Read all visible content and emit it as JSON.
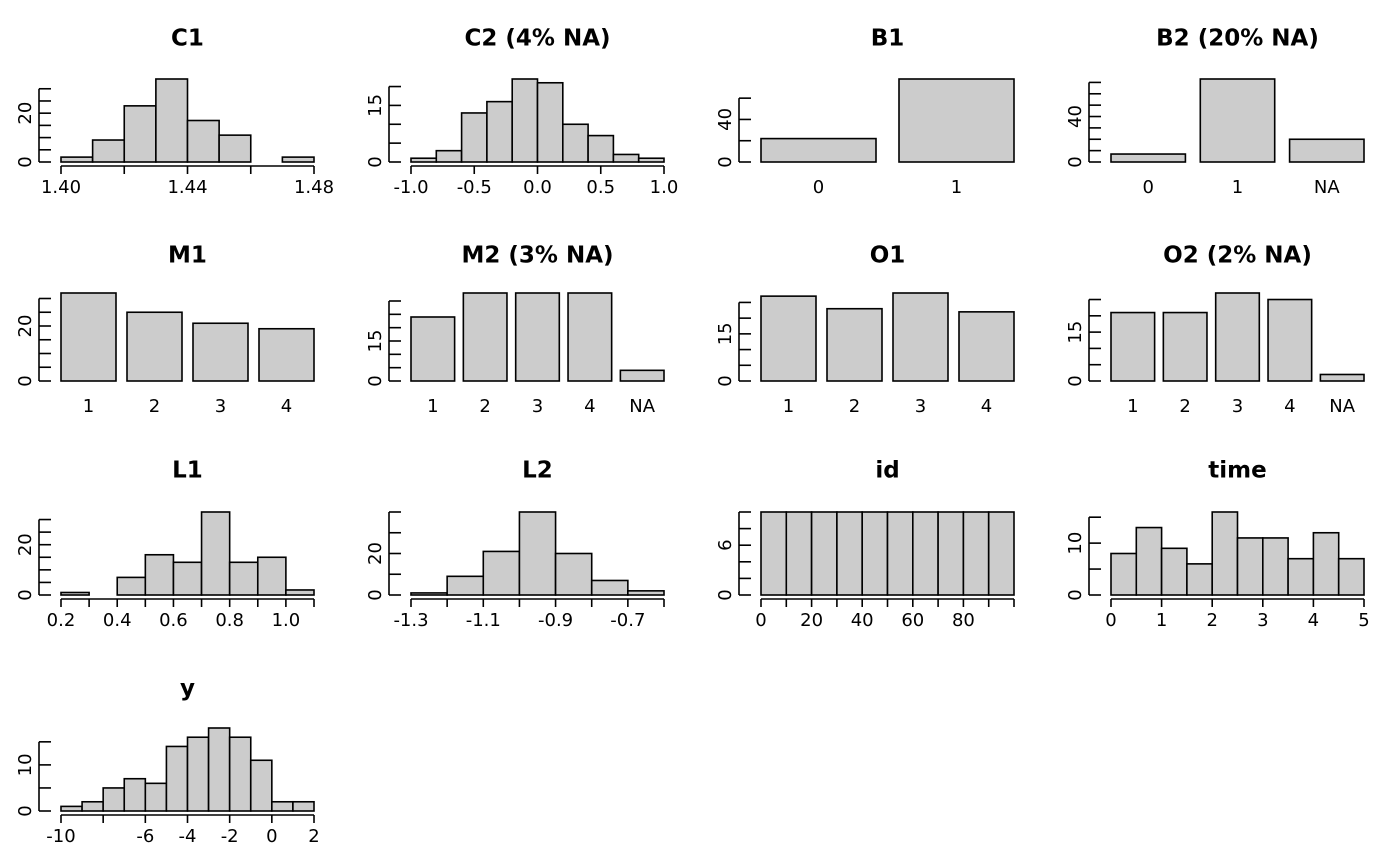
{
  "figure": {
    "bar_fill": "#cccccc",
    "bar_stroke": "#000000"
  },
  "chart_data": [
    {
      "type": "bar",
      "title": "C1",
      "kind": "hist",
      "x_breaks": [
        1.4,
        1.41,
        1.42,
        1.43,
        1.44,
        1.45,
        1.46,
        1.47,
        1.48
      ],
      "values": [
        2,
        9,
        23,
        34,
        17,
        11,
        0,
        2
      ],
      "xlim": [
        1.4,
        1.48
      ],
      "ylim": [
        0,
        34
      ],
      "x_ticks": [
        1.4,
        1.42,
        1.44,
        1.46,
        1.48
      ],
      "x_tick_labels": [
        "1.40",
        "",
        "1.44",
        "",
        "1.48"
      ],
      "y_ticks": [
        0,
        20
      ],
      "y_minor": 5
    },
    {
      "type": "bar",
      "title": "C2 (4% NA)",
      "kind": "hist",
      "x_breaks": [
        -1.0,
        -0.8,
        -0.6,
        -0.4,
        -0.2,
        0.0,
        0.2,
        0.4,
        0.6,
        0.8,
        1.0
      ],
      "values": [
        1,
        3,
        13,
        16,
        22,
        21,
        10,
        7,
        2,
        1
      ],
      "xlim": [
        -1.0,
        1.0
      ],
      "ylim": [
        0,
        22
      ],
      "x_ticks": [
        -1.0,
        -0.5,
        0.0,
        0.5,
        1.0
      ],
      "x_tick_labels": [
        "-1.0",
        "-0.5",
        "0.0",
        "0.5",
        "1.0"
      ],
      "y_ticks": [
        0,
        15
      ],
      "y_minor": 5
    },
    {
      "type": "bar",
      "title": "B1",
      "kind": "barplot",
      "categories": [
        "0",
        "1"
      ],
      "values": [
        22,
        78
      ],
      "ylim": [
        0,
        78
      ],
      "y_ticks": [
        0,
        40
      ],
      "y_minor": 20
    },
    {
      "type": "bar",
      "title": "B2 (20% NA)",
      "kind": "barplot",
      "categories": [
        "0",
        "1",
        "NA"
      ],
      "values": [
        7,
        73,
        20
      ],
      "ylim": [
        0,
        73
      ],
      "y_ticks": [
        0,
        40
      ],
      "y_minor": 10
    },
    {
      "type": "bar",
      "title": "M1",
      "kind": "barplot",
      "categories": [
        "1",
        "2",
        "3",
        "4"
      ],
      "values": [
        32,
        25,
        21,
        19
      ],
      "ylim": [
        0,
        32
      ],
      "y_ticks": [
        0,
        20
      ],
      "y_minor": 5
    },
    {
      "type": "bar",
      "title": "M2 (3% NA)",
      "kind": "barplot",
      "categories": [
        "1",
        "2",
        "3",
        "4",
        "NA"
      ],
      "values": [
        24,
        33,
        33,
        33,
        4
      ],
      "ylim": [
        0,
        33
      ],
      "y_ticks": [
        0,
        15
      ],
      "y_minor": 5
    },
    {
      "type": "bar",
      "title": "O1",
      "kind": "barplot",
      "categories": [
        "1",
        "2",
        "3",
        "4"
      ],
      "values": [
        27,
        23,
        28,
        22
      ],
      "ylim": [
        0,
        28
      ],
      "y_ticks": [
        0,
        15
      ],
      "y_minor": 5
    },
    {
      "type": "bar",
      "title": "O2 (2% NA)",
      "kind": "barplot",
      "categories": [
        "1",
        "2",
        "3",
        "4",
        "NA"
      ],
      "values": [
        21,
        21,
        27,
        25,
        2
      ],
      "ylim": [
        0,
        27
      ],
      "y_ticks": [
        0,
        15
      ],
      "y_minor": 5
    },
    {
      "type": "bar",
      "title": "L1",
      "kind": "hist",
      "x_breaks": [
        0.2,
        0.3,
        0.4,
        0.5,
        0.6,
        0.7,
        0.8,
        0.9,
        1.0,
        1.1
      ],
      "values": [
        1,
        0,
        7,
        16,
        13,
        33,
        13,
        15,
        2
      ],
      "xlim": [
        0.2,
        1.1
      ],
      "ylim": [
        0,
        33
      ],
      "x_ticks": [
        0.2,
        0.3,
        0.4,
        0.5,
        0.6,
        0.7,
        0.8,
        0.9,
        1.0,
        1.1
      ],
      "x_tick_labels": [
        "0.2",
        "",
        "0.4",
        "",
        "0.6",
        "",
        "0.8",
        "",
        "1.0",
        ""
      ],
      "y_ticks": [
        0,
        20
      ],
      "y_minor": 5
    },
    {
      "type": "bar",
      "title": "L2",
      "kind": "hist",
      "x_breaks": [
        -1.3,
        -1.2,
        -1.1,
        -1.0,
        -0.9,
        -0.8,
        -0.7,
        -0.6
      ],
      "values": [
        1,
        9,
        21,
        40,
        20,
        7,
        2
      ],
      "xlim": [
        -1.3,
        -0.6
      ],
      "ylim": [
        0,
        40
      ],
      "x_ticks": [
        -1.3,
        -1.2,
        -1.1,
        -1.0,
        -0.9,
        -0.8,
        -0.7,
        -0.6
      ],
      "x_tick_labels": [
        "-1.3",
        "",
        "-1.1",
        "",
        "-0.9",
        "",
        "-0.7",
        ""
      ],
      "y_ticks": [
        0,
        20
      ],
      "y_minor": 10
    },
    {
      "type": "bar",
      "title": "id",
      "kind": "hist",
      "x_breaks": [
        0,
        10,
        20,
        30,
        40,
        50,
        60,
        70,
        80,
        90,
        100
      ],
      "values": [
        10,
        10,
        10,
        10,
        10,
        10,
        10,
        10,
        10,
        10
      ],
      "xlim": [
        0,
        100
      ],
      "ylim": [
        0,
        10
      ],
      "x_ticks": [
        0,
        10,
        20,
        30,
        40,
        50,
        60,
        70,
        80,
        90,
        100
      ],
      "x_tick_labels": [
        "0",
        "",
        "20",
        "",
        "40",
        "",
        "60",
        "",
        "80",
        "",
        ""
      ],
      "y_ticks": [
        0,
        6
      ],
      "y_minor": 2
    },
    {
      "type": "bar",
      "title": "time",
      "kind": "hist",
      "x_breaks": [
        0,
        0.5,
        1.0,
        1.5,
        2.0,
        2.5,
        3.0,
        3.5,
        4.0,
        4.5,
        5.0
      ],
      "values": [
        8,
        13,
        9,
        6,
        16,
        11,
        11,
        7,
        12,
        7
      ],
      "xlim": [
        0,
        5
      ],
      "ylim": [
        0,
        16
      ],
      "x_ticks": [
        0,
        1,
        2,
        3,
        4,
        5
      ],
      "x_tick_labels": [
        "0",
        "1",
        "2",
        "3",
        "4",
        "5"
      ],
      "y_ticks": [
        0,
        10
      ],
      "y_minor": 5
    },
    {
      "type": "bar",
      "title": "y",
      "kind": "hist",
      "x_breaks": [
        -10,
        -9,
        -8,
        -7,
        -6,
        -5,
        -4,
        -3,
        -2,
        -1,
        0,
        1,
        2
      ],
      "values": [
        1,
        2,
        5,
        7,
        6,
        14,
        16,
        18,
        16,
        11,
        2,
        2
      ],
      "xlim": [
        -10,
        2
      ],
      "ylim": [
        0,
        18
      ],
      "x_ticks": [
        -10,
        -8,
        -6,
        -4,
        -2,
        0,
        2
      ],
      "x_tick_labels": [
        "-10",
        "",
        "-6",
        "-4",
        "-2",
        "0",
        "2"
      ],
      "y_ticks": [
        0,
        10
      ],
      "y_minor": 5
    }
  ]
}
